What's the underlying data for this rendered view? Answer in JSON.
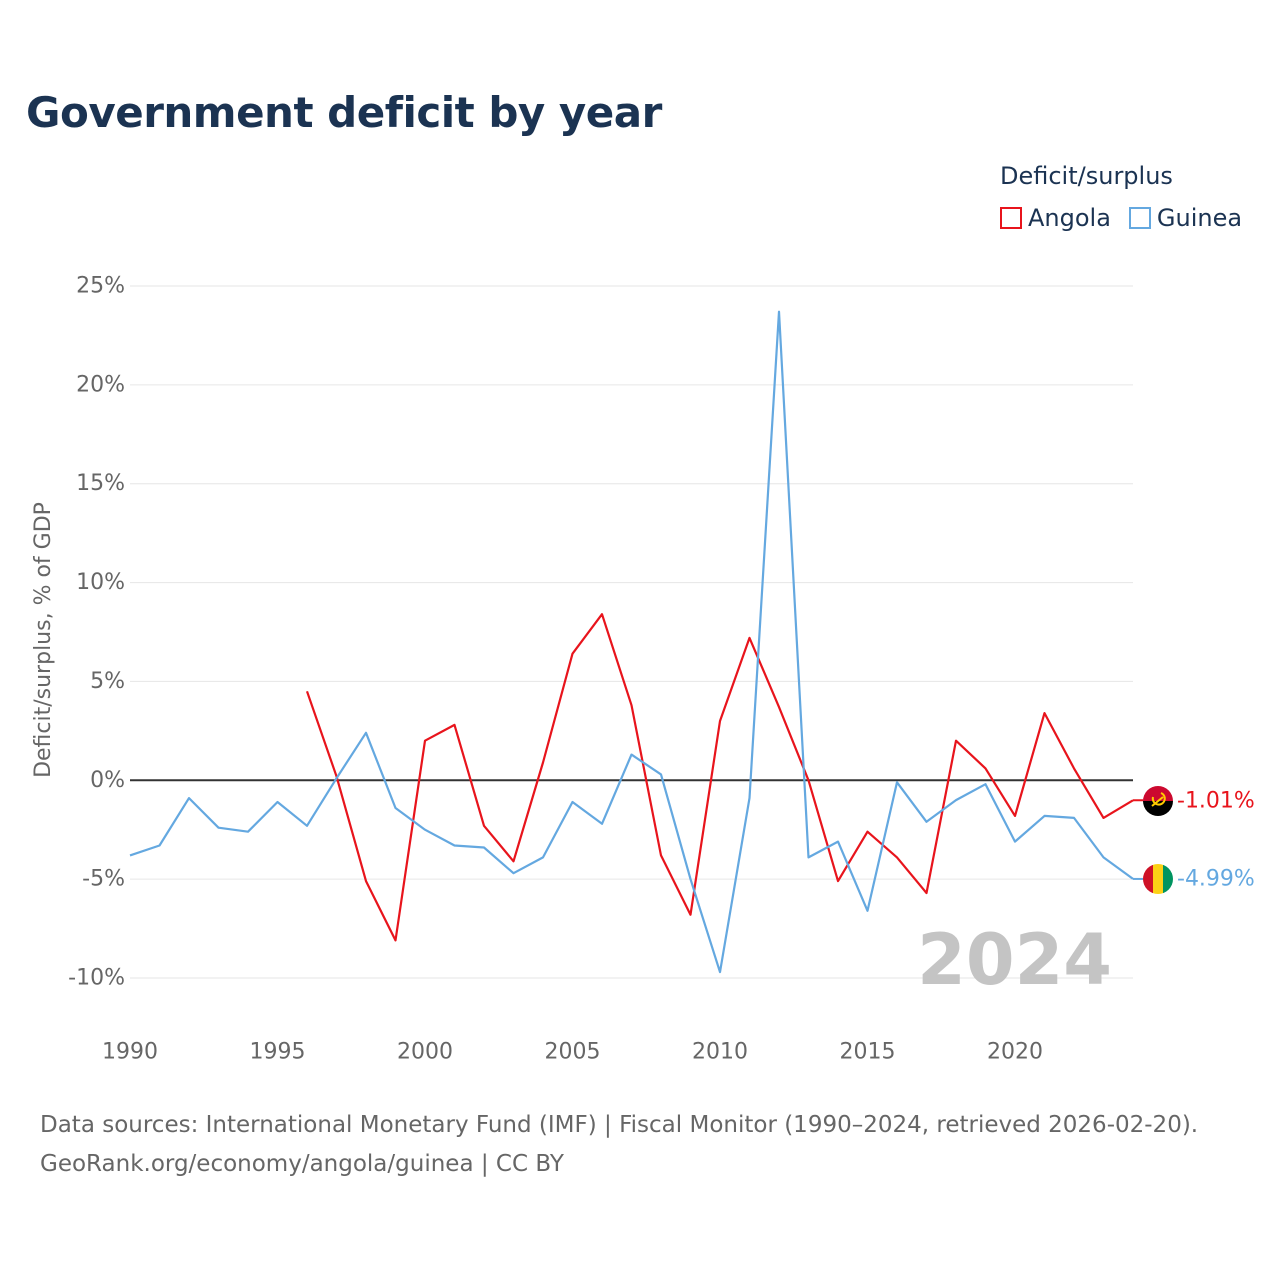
{
  "title": "Government deficit by year",
  "legend": {
    "title": "Deficit/surplus",
    "items": [
      {
        "label": "Angola",
        "color": "#e8141c"
      },
      {
        "label": "Guinea",
        "color": "#64a8e0"
      }
    ]
  },
  "chart_data": {
    "type": "line",
    "ylabel": "Deficit/surplus, % of GDP",
    "xlabel": "",
    "xlim": [
      1990,
      2024
    ],
    "ylim": [
      -12,
      26
    ],
    "x_ticks": [
      "1990",
      "1995",
      "2000",
      "2005",
      "2010",
      "2015",
      "2020"
    ],
    "y_ticks": [
      "25%",
      "20%",
      "15%",
      "10%",
      "5%",
      "0%",
      "-5%",
      "-10%"
    ],
    "y_tick_values": [
      25,
      20,
      15,
      10,
      5,
      0,
      -5,
      -10
    ],
    "zero_line": true,
    "year_watermark": "2024",
    "series": [
      {
        "name": "Angola",
        "color": "#e8141c",
        "end_label": "-1.01%",
        "points": [
          [
            1996,
            4.5
          ],
          [
            1997,
            0.2
          ],
          [
            1998,
            -5.1
          ],
          [
            1999,
            -8.1
          ],
          [
            2000,
            2.0
          ],
          [
            2001,
            2.8
          ],
          [
            2002,
            -2.3
          ],
          [
            2003,
            -4.1
          ],
          [
            2004,
            0.9
          ],
          [
            2005,
            6.4
          ],
          [
            2006,
            8.4
          ],
          [
            2007,
            3.8
          ],
          [
            2008,
            -3.8
          ],
          [
            2009,
            -6.8
          ],
          [
            2010,
            3.0
          ],
          [
            2011,
            7.2
          ],
          [
            2012,
            3.7
          ],
          [
            2013,
            0.0
          ],
          [
            2014,
            -5.1
          ],
          [
            2015,
            -2.6
          ],
          [
            2016,
            -3.9
          ],
          [
            2017,
            -5.7
          ],
          [
            2018,
            2.0
          ],
          [
            2019,
            0.6
          ],
          [
            2020,
            -1.8
          ],
          [
            2021,
            3.4
          ],
          [
            2022,
            0.6
          ],
          [
            2023,
            -1.9
          ],
          [
            2024,
            -1.01
          ]
        ]
      },
      {
        "name": "Guinea",
        "color": "#64a8e0",
        "end_label": "-4.99%",
        "points": [
          [
            1990,
            -3.8
          ],
          [
            1991,
            -3.3
          ],
          [
            1992,
            -0.9
          ],
          [
            1993,
            -2.4
          ],
          [
            1994,
            -2.6
          ],
          [
            1995,
            -1.1
          ],
          [
            1996,
            -2.3
          ],
          [
            1997,
            0.1
          ],
          [
            1998,
            2.4
          ],
          [
            1999,
            -1.4
          ],
          [
            2000,
            -2.5
          ],
          [
            2001,
            -3.3
          ],
          [
            2002,
            -3.4
          ],
          [
            2003,
            -4.7
          ],
          [
            2004,
            -3.9
          ],
          [
            2005,
            -1.1
          ],
          [
            2006,
            -2.2
          ],
          [
            2007,
            1.3
          ],
          [
            2008,
            0.3
          ],
          [
            2009,
            -5.0
          ],
          [
            2010,
            -9.7
          ],
          [
            2011,
            -0.9
          ],
          [
            2012,
            23.7
          ],
          [
            2013,
            -3.9
          ],
          [
            2014,
            -3.1
          ],
          [
            2015,
            -6.6
          ],
          [
            2016,
            -0.1
          ],
          [
            2017,
            -2.1
          ],
          [
            2018,
            -1.0
          ],
          [
            2019,
            -0.2
          ],
          [
            2020,
            -3.1
          ],
          [
            2021,
            -1.8
          ],
          [
            2022,
            -1.9
          ],
          [
            2023,
            -3.9
          ],
          [
            2024,
            -4.99
          ]
        ]
      }
    ]
  },
  "footer": {
    "line1": "Data sources: International Monetary Fund (IMF) | Fiscal Monitor (1990–2024, retrieved 2026-02-20).",
    "line2": "GeoRank.org/economy/angola/guinea | CC BY"
  }
}
